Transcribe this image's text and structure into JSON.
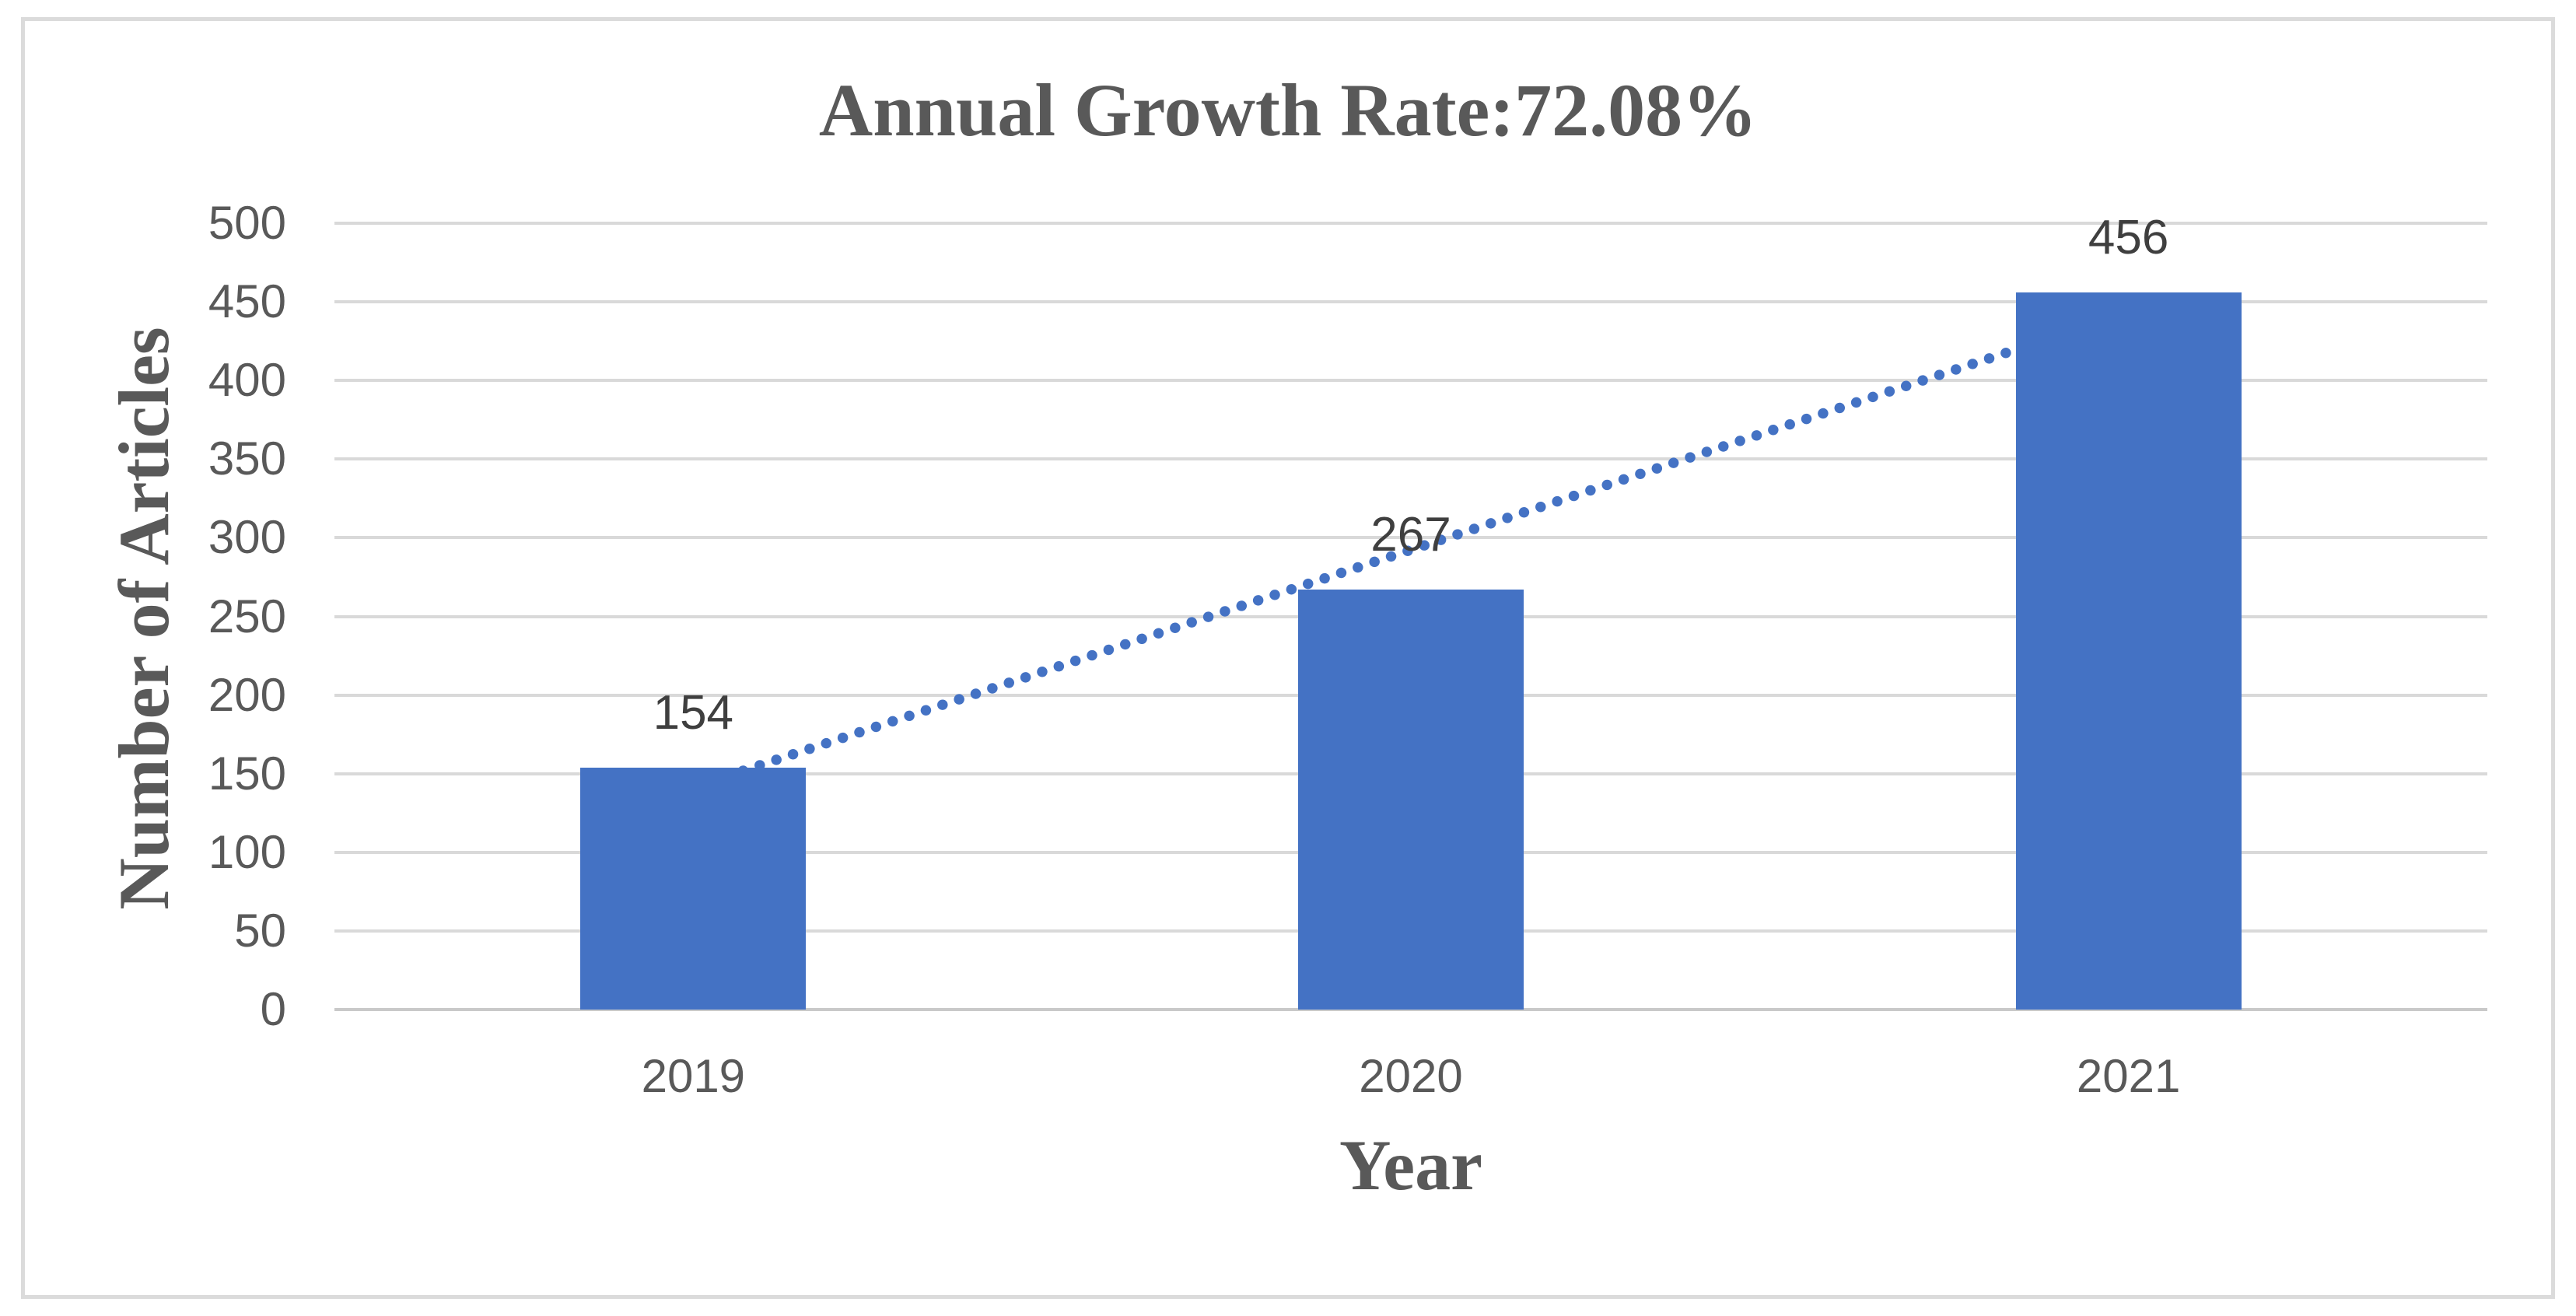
{
  "chart_data": {
    "type": "bar",
    "title": "Annual Growth Rate:72.08%",
    "xlabel": "Year",
    "ylabel": "Number of Articles",
    "categories": [
      "2019",
      "2020",
      "2021"
    ],
    "values": [
      154,
      267,
      456
    ],
    "data_labels": [
      "154",
      "267",
      "456"
    ],
    "ylim": [
      0,
      500
    ],
    "ytick_step": 50,
    "yticks": [
      "0",
      "50",
      "100",
      "150",
      "200",
      "250",
      "300",
      "350",
      "400",
      "450",
      "500"
    ],
    "grid": true,
    "legend_position": "none",
    "trendline": {
      "type": "linear",
      "style": "dotted"
    },
    "colors": {
      "bar": "#4472C4",
      "trendline": "#4472C4",
      "gridline": "#D9D9D9",
      "axis_line": "#C9C9C9",
      "tick_label": "#595959",
      "data_label": "#3F3F3F",
      "title": "#595959",
      "border": "#DBDBDB"
    }
  }
}
